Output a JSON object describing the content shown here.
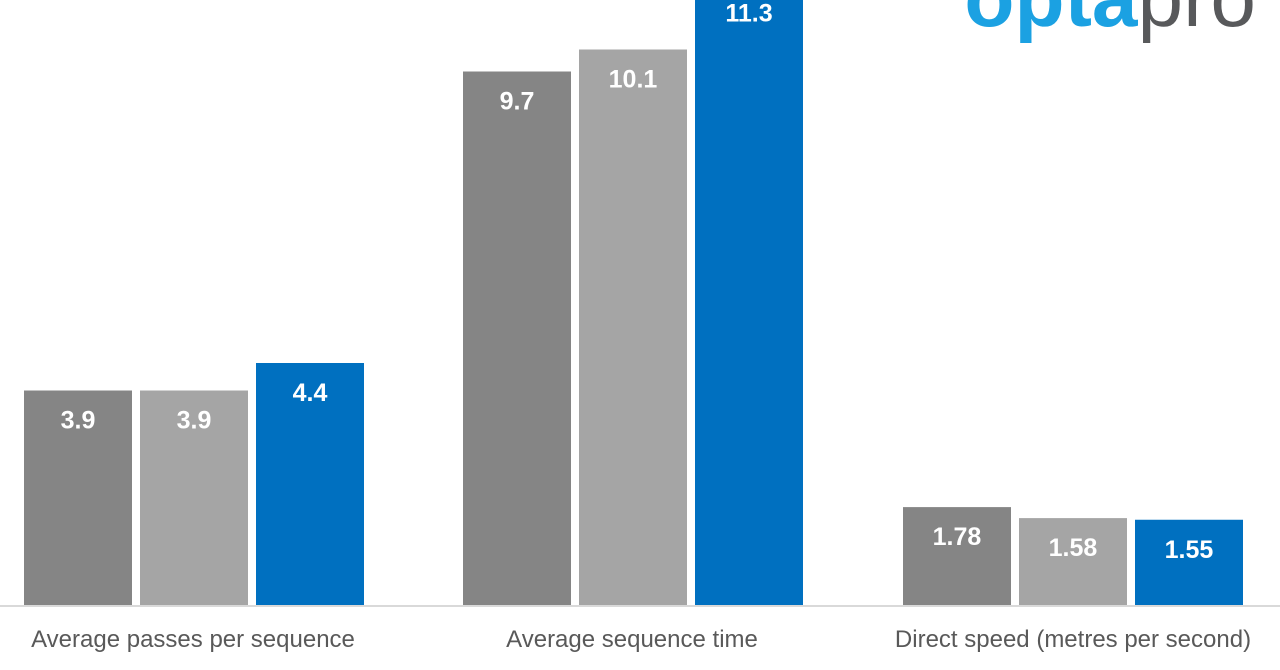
{
  "chart_data": {
    "type": "bar",
    "categories": [
      "Average passes per sequence",
      "Average sequence time",
      "Direct speed (metres per second)"
    ],
    "series": [
      {
        "color": "#858585",
        "values": [
          3.9,
          9.7,
          1.78
        ],
        "labels": [
          "3.9",
          "9.7",
          "1.78"
        ]
      },
      {
        "color": "#a5a5a5",
        "values": [
          3.9,
          10.1,
          1.58
        ],
        "labels": [
          "3.9",
          "10.1",
          "1.58"
        ]
      },
      {
        "color": "#0070c0",
        "values": [
          4.4,
          11.3,
          1.55
        ],
        "labels": [
          "4.4",
          "11.3",
          "1.55"
        ]
      }
    ],
    "title": "",
    "xlabel": "",
    "ylabel": "",
    "ylim": [
      0,
      11
    ],
    "grid": false,
    "legend": "none"
  },
  "logo": {
    "text_primary": "opta",
    "text_secondary": "pro",
    "color_primary": "#1ba1e2",
    "color_secondary": "#58595b"
  },
  "colors": {
    "axis": "#d9d9d9",
    "category_text": "#595959",
    "value_text": "#ffffff"
  }
}
